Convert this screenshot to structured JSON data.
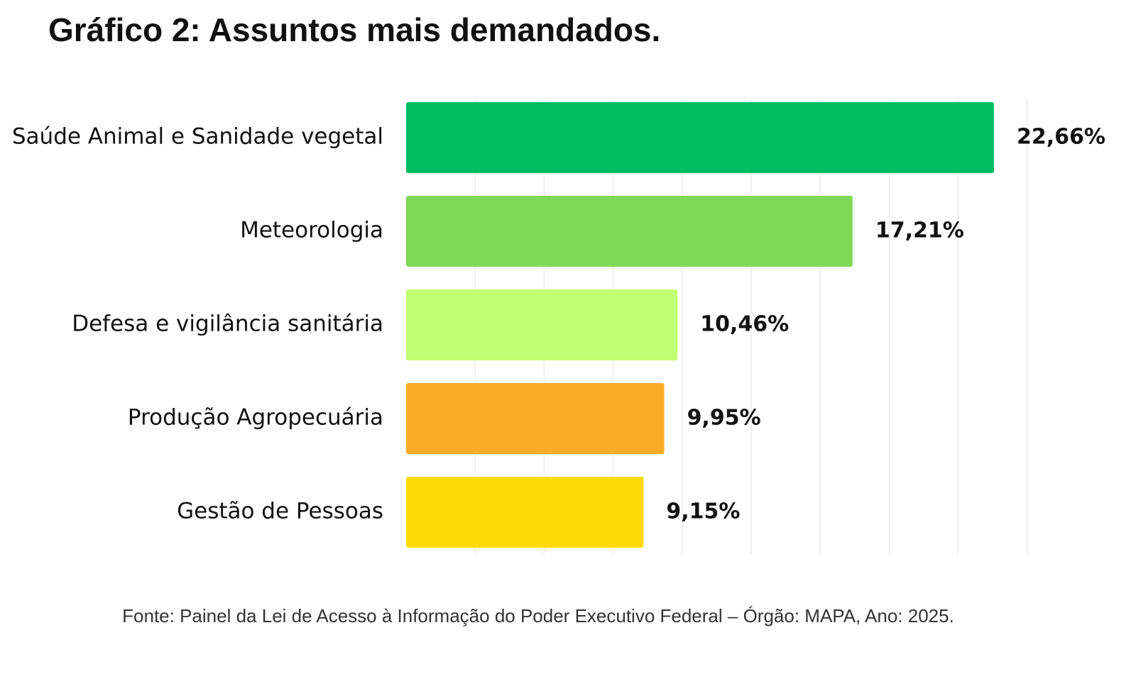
{
  "chart_data": {
    "type": "bar",
    "orientation": "horizontal",
    "title": "Gráfico 2: Assuntos mais demandados.",
    "categories": [
      "Saúde Animal e Sanidade vegetal",
      "Meteorologia",
      "Defesa e vigilância sanitária",
      "Produção Agropecuária",
      "Gestão de Pessoas"
    ],
    "values": [
      22.66,
      17.21,
      10.46,
      9.95,
      9.15
    ],
    "value_labels": [
      "22,66%",
      "17,21%",
      "10,46%",
      "9,95%",
      "9,15%"
    ],
    "colors": [
      "#00bf63",
      "#7ed957",
      "#c1ff72",
      "#f9ab27",
      "#fcdb07"
    ],
    "grid": true,
    "source": "Fonte: Painel da Lei de Acesso à Informação do Poder Executivo Federal – Órgão: MAPA, Ano: 2025."
  }
}
